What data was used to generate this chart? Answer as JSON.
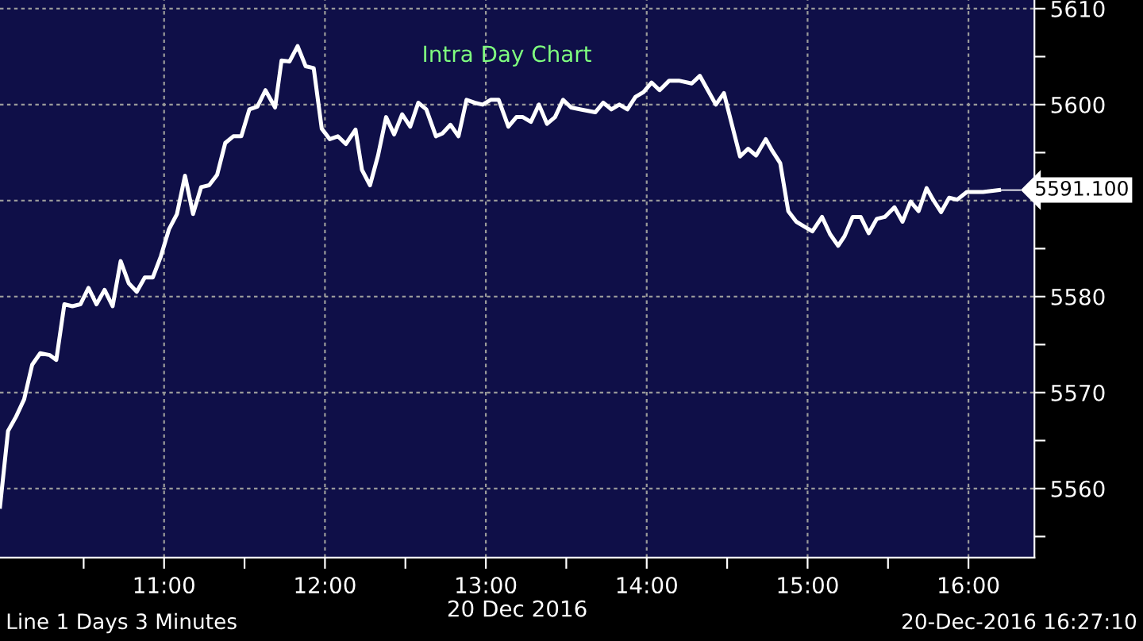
{
  "chart_data": {
    "type": "line",
    "title": "Intra Day Chart",
    "xlabel": "20 Dec 2016",
    "x": [
      9.98,
      10.03,
      10.08,
      10.13,
      10.18,
      10.23,
      10.29,
      10.33,
      10.38,
      10.43,
      10.48,
      10.53,
      10.58,
      10.63,
      10.68,
      10.73,
      10.78,
      10.83,
      10.88,
      10.93,
      10.98,
      11.03,
      11.08,
      11.13,
      11.18,
      11.23,
      11.28,
      11.33,
      11.38,
      11.43,
      11.48,
      11.53,
      11.58,
      11.63,
      11.69,
      11.73,
      11.78,
      11.83,
      11.88,
      11.93,
      11.98,
      12.03,
      12.08,
      12.13,
      12.19,
      12.23,
      12.28,
      12.33,
      12.38,
      12.43,
      12.48,
      12.53,
      12.58,
      12.63,
      12.69,
      12.73,
      12.78,
      12.83,
      12.88,
      12.93,
      12.98,
      13.03,
      13.08,
      13.14,
      13.19,
      13.23,
      13.28,
      13.33,
      13.38,
      13.43,
      13.48,
      13.53,
      13.59,
      13.68,
      13.73,
      13.78,
      13.83,
      13.88,
      13.93,
      13.98,
      14.03,
      14.08,
      14.14,
      14.2,
      14.28,
      14.33,
      14.38,
      14.43,
      14.48,
      14.53,
      14.58,
      14.63,
      14.68,
      14.74,
      14.78,
      14.83,
      14.88,
      14.93,
      14.98,
      15.03,
      15.09,
      15.14,
      15.19,
      15.23,
      15.28,
      15.33,
      15.38,
      15.43,
      15.48,
      15.54,
      15.59,
      15.64,
      15.69,
      15.74,
      15.78,
      15.83,
      15.88,
      15.93,
      15.99,
      16.09,
      16.19
    ],
    "series": [
      {
        "color": "#ffffff",
        "values": [
          5558.1,
          5566.0,
          5567.5,
          5569.3,
          5572.9,
          5574.1,
          5573.9,
          5573.4,
          5579.2,
          5579.0,
          5579.2,
          5580.9,
          5579.2,
          5580.7,
          5579.0,
          5583.7,
          5581.4,
          5580.5,
          5582.0,
          5582.0,
          5584.2,
          5587.0,
          5588.6,
          5592.6,
          5588.6,
          5591.4,
          5591.6,
          5592.7,
          5596.0,
          5596.7,
          5596.7,
          5599.5,
          5599.8,
          5601.5,
          5599.7,
          5604.6,
          5604.5,
          5606.1,
          5604.0,
          5603.8,
          5597.5,
          5596.4,
          5596.7,
          5595.9,
          5597.4,
          5593.2,
          5591.6,
          5594.7,
          5598.7,
          5596.9,
          5599.0,
          5597.7,
          5600.2,
          5599.5,
          5596.7,
          5597.0,
          5597.9,
          5596.7,
          5600.5,
          5600.2,
          5600.0,
          5600.5,
          5600.5,
          5597.7,
          5598.7,
          5598.7,
          5598.2,
          5600.0,
          5598.0,
          5598.7,
          5600.5,
          5599.7,
          5599.5,
          5599.2,
          5600.2,
          5599.5,
          5600.0,
          5599.5,
          5600.8,
          5601.3,
          5602.3,
          5601.5,
          5602.5,
          5602.5,
          5602.2,
          5603.0,
          5601.5,
          5600.0,
          5601.2,
          5597.9,
          5594.6,
          5595.4,
          5594.7,
          5596.4,
          5595.2,
          5593.9,
          5588.9,
          5587.8,
          5587.3,
          5586.8,
          5588.3,
          5586.5,
          5585.3,
          5586.3,
          5588.3,
          5588.3,
          5586.6,
          5588.1,
          5588.3,
          5589.3,
          5587.8,
          5589.9,
          5588.9,
          5591.3,
          5590.1,
          5588.8,
          5590.3,
          5590.1,
          5590.9,
          5590.9,
          5591.1
        ]
      }
    ],
    "xlim": [
      9.98,
      16.41
    ],
    "ylim": [
      5552.8,
      5610.9
    ],
    "xticks": [
      {
        "value": 10.5,
        "label": null
      },
      {
        "value": 11,
        "label": "11:00"
      },
      {
        "value": 11.5,
        "label": null
      },
      {
        "value": 12,
        "label": "12:00"
      },
      {
        "value": 12.5,
        "label": null
      },
      {
        "value": 13,
        "label": "13:00"
      },
      {
        "value": 13.5,
        "label": null
      },
      {
        "value": 14,
        "label": "14:00"
      },
      {
        "value": 14.5,
        "label": null
      },
      {
        "value": 15,
        "label": "15:00"
      },
      {
        "value": 15.5,
        "label": null
      },
      {
        "value": 16,
        "label": "16:00"
      }
    ],
    "yticks": [
      {
        "value": 5555,
        "label": null
      },
      5560,
      {
        "value": 5565,
        "label": null
      },
      5570,
      {
        "value": 5575,
        "label": null
      },
      5580,
      {
        "value": 5585,
        "label": null
      },
      {
        "value": 5590,
        "label": null
      },
      {
        "value": 5595,
        "label": null
      },
      5600,
      {
        "value": 5605,
        "label": null
      },
      5610
    ],
    "grid": true,
    "line_style": "solid",
    "marker": "none",
    "annotations": [
      {
        "text": "5591.100",
        "x": 16.19,
        "y": 5591.1
      },
      "Line 1 Days 3 Minutes",
      "20-Dec-2016 16:27:10"
    ]
  }
}
